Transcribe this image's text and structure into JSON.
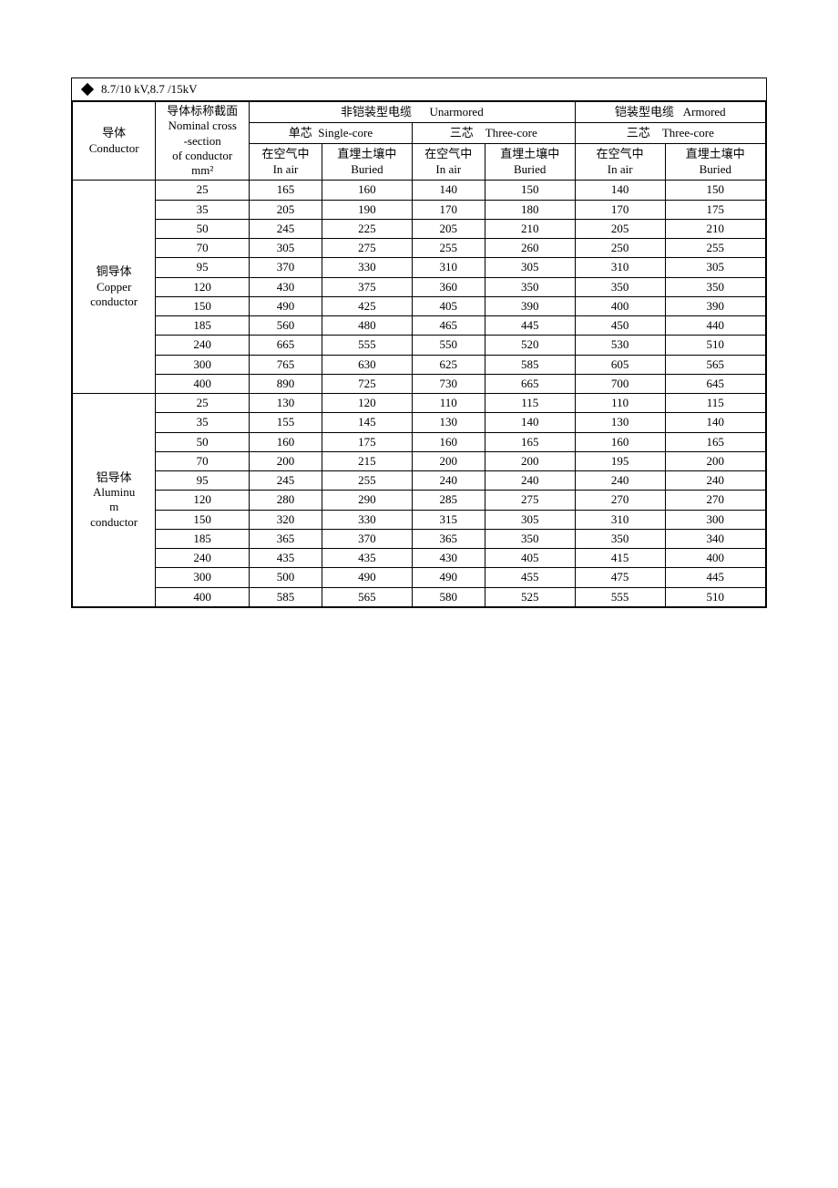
{
  "title": "8.7/10 kV,8.7 /15kV",
  "headers": {
    "conductor_cn": "导体",
    "conductor_en": "Conductor",
    "nominal_cn": "导体标称截面",
    "nominal_en1": "Nominal cross",
    "nominal_en2": "-section",
    "nominal_en3": "of conductor",
    "nominal_unit": "mm²",
    "unarmored_cn": "非铠装型电缆",
    "unarmored_en": "Unarmored",
    "armored_cn": "铠装型电缆",
    "armored_en": "Armored",
    "single_core_cn": "单芯",
    "single_core_en": "Single-core",
    "three_core_cn": "三芯",
    "three_core_en": "Three-core",
    "in_air_cn": "在空气中",
    "in_air_en": "In air",
    "buried_cn": "直埋土壤中",
    "buried_en": "Buried"
  },
  "groups": [
    {
      "label_lines": [
        "铜导体",
        "Copper",
        "conductor"
      ],
      "rows": [
        {
          "size": "25",
          "v": [
            "165",
            "160",
            "140",
            "150",
            "140",
            "150"
          ]
        },
        {
          "size": "35",
          "v": [
            "205",
            "190",
            "170",
            "180",
            "170",
            "175"
          ]
        },
        {
          "size": "50",
          "v": [
            "245",
            "225",
            "205",
            "210",
            "205",
            "210"
          ]
        },
        {
          "size": "70",
          "v": [
            "305",
            "275",
            "255",
            "260",
            "250",
            "255"
          ]
        },
        {
          "size": "95",
          "v": [
            "370",
            "330",
            "310",
            "305",
            "310",
            "305"
          ]
        },
        {
          "size": "120",
          "v": [
            "430",
            "375",
            "360",
            "350",
            "350",
            "350"
          ]
        },
        {
          "size": "150",
          "v": [
            "490",
            "425",
            "405",
            "390",
            "400",
            "390"
          ]
        },
        {
          "size": "185",
          "v": [
            "560",
            "480",
            "465",
            "445",
            "450",
            "440"
          ]
        },
        {
          "size": "240",
          "v": [
            "665",
            "555",
            "550",
            "520",
            "530",
            "510"
          ]
        },
        {
          "size": "300",
          "v": [
            "765",
            "630",
            "625",
            "585",
            "605",
            "565"
          ]
        },
        {
          "size": "400",
          "v": [
            "890",
            "725",
            "730",
            "665",
            "700",
            "645"
          ]
        }
      ]
    },
    {
      "label_lines": [
        "铝导体",
        "Aluminu",
        "m",
        "conductor"
      ],
      "rows": [
        {
          "size": "25",
          "v": [
            "130",
            "120",
            "110",
            "115",
            "110",
            "115"
          ]
        },
        {
          "size": "35",
          "v": [
            "155",
            "145",
            "130",
            "140",
            "130",
            "140"
          ]
        },
        {
          "size": "50",
          "v": [
            "160",
            "175",
            "160",
            "165",
            "160",
            "165"
          ]
        },
        {
          "size": "70",
          "v": [
            "200",
            "215",
            "200",
            "200",
            "195",
            "200"
          ]
        },
        {
          "size": "95",
          "v": [
            "245",
            "255",
            "240",
            "240",
            "240",
            "240"
          ]
        },
        {
          "size": "120",
          "v": [
            "280",
            "290",
            "285",
            "275",
            "270",
            "270"
          ]
        },
        {
          "size": "150",
          "v": [
            "320",
            "330",
            "315",
            "305",
            "310",
            "300"
          ]
        },
        {
          "size": "185",
          "v": [
            "365",
            "370",
            "365",
            "350",
            "350",
            "340"
          ]
        },
        {
          "size": "240",
          "v": [
            "435",
            "435",
            "430",
            "405",
            "415",
            "400"
          ]
        },
        {
          "size": "300",
          "v": [
            "500",
            "490",
            "490",
            "455",
            "475",
            "445"
          ]
        },
        {
          "size": "400",
          "v": [
            "585",
            "565",
            "580",
            "525",
            "555",
            "510"
          ]
        }
      ]
    }
  ],
  "col_widths_pct": [
    12,
    13.5,
    10.5,
    13,
    10.5,
    13,
    13,
    14.5
  ],
  "border_color": "#000000",
  "background_color": "#ffffff"
}
